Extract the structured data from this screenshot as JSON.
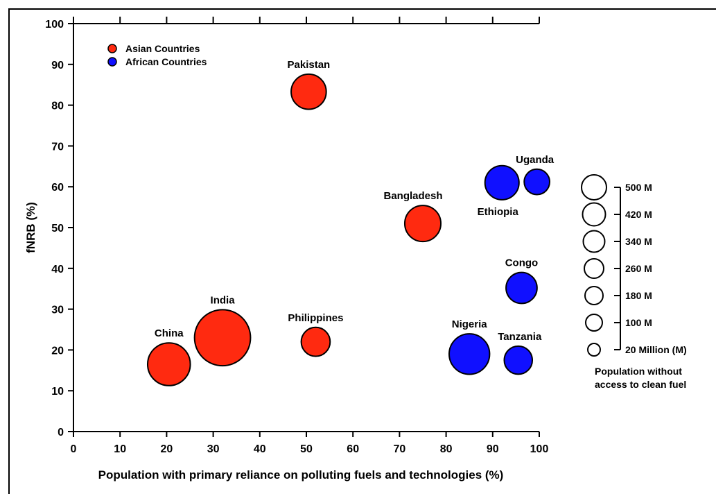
{
  "chart_data": {
    "type": "scatter",
    "xlabel": "Population with primary reliance on polluting fuels and technologies (%)",
    "ylabel": "fNRB (%)",
    "xlim": [
      0,
      100
    ],
    "ylim": [
      0,
      100
    ],
    "x_ticks": [
      "0",
      "10",
      "20",
      "30",
      "40",
      "50",
      "60",
      "70",
      "80",
      "90",
      "100"
    ],
    "y_ticks": [
      "0",
      "10",
      "20",
      "30",
      "40",
      "50",
      "60",
      "70",
      "80",
      "90",
      "100"
    ],
    "legend": {
      "placement": "top-left",
      "entries": [
        {
          "name": "Asian Countries",
          "color": "#ff2a10"
        },
        {
          "name": "African Countries",
          "color": "#1010ff"
        }
      ]
    },
    "series": [
      {
        "name": "Asian Countries",
        "color": "#ff2a10",
        "points": [
          {
            "label": "China",
            "x": 20.5,
            "y": 16.5,
            "population_m": 200
          },
          {
            "label": "India",
            "x": 32,
            "y": 23,
            "population_m": 450
          },
          {
            "label": "Philippines",
            "x": 52,
            "y": 22,
            "population_m": 60
          },
          {
            "label": "Pakistan",
            "x": 50.5,
            "y": 83.3,
            "population_m": 110
          },
          {
            "label": "Bangladesh",
            "x": 75,
            "y": 51,
            "population_m": 120
          }
        ]
      },
      {
        "name": "African Countries",
        "color": "#1010ff",
        "points": [
          {
            "label": "Ethiopia",
            "x": 92,
            "y": 61,
            "population_m": 100
          },
          {
            "label": "Uganda",
            "x": 99.5,
            "y": 61.2,
            "population_m": 40
          },
          {
            "label": "Congo",
            "x": 96.2,
            "y": 35.2,
            "population_m": 75
          },
          {
            "label": "Nigeria",
            "x": 85,
            "y": 19,
            "population_m": 170
          },
          {
            "label": "Tanzania",
            "x": 95.5,
            "y": 17.5,
            "population_m": 55
          }
        ]
      }
    ],
    "size_legend": {
      "title_lines": [
        "Population without",
        "access to clean fuel"
      ],
      "entries": [
        {
          "label": "500 M",
          "value": 500
        },
        {
          "label": "420 M",
          "value": 420
        },
        {
          "label": "340 M",
          "value": 340
        },
        {
          "label": "260 M",
          "value": 260
        },
        {
          "label": "180 M",
          "value": 180
        },
        {
          "label": "100 M",
          "value": 100
        },
        {
          "label": "20 Million (M)",
          "value": 20
        }
      ]
    }
  }
}
